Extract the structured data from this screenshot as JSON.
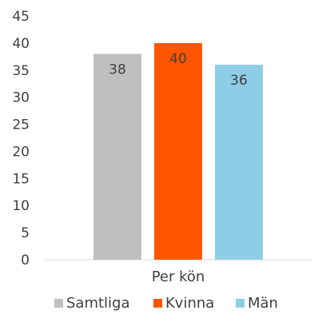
{
  "chart_data": {
    "type": "bar",
    "categories": [
      "Per kön"
    ],
    "series": [
      {
        "name": "Samtliga",
        "values": [
          38
        ],
        "color": "#bfbfbf"
      },
      {
        "name": "Kvinna",
        "values": [
          40
        ],
        "color": "#ff5500"
      },
      {
        "name": "Män",
        "values": [
          36
        ],
        "color": "#8ecde6"
      }
    ],
    "data_labels": [
      "38",
      "40",
      "36"
    ],
    "ylim": [
      0,
      45
    ],
    "yticks": [
      "0",
      "5",
      "10",
      "15",
      "20",
      "25",
      "30",
      "35",
      "40",
      "45"
    ],
    "grid": false,
    "legend_position": "bottom"
  }
}
